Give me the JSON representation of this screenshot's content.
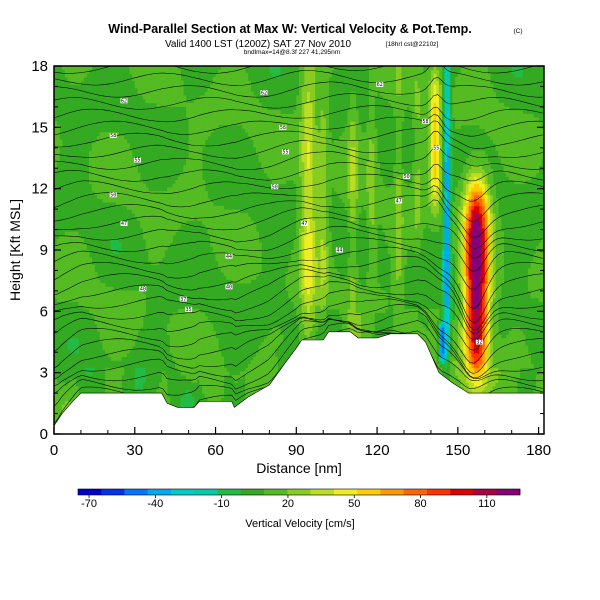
{
  "chart_data": {
    "type": "heatmap",
    "title": "Wind-Parallel Section at Max W: Vertical Velocity & Pot.Temp.",
    "title_mark": "(C)",
    "subtitle": "Valid 1400 LST (1200Z) SAT 27 Nov 2010",
    "subtitle_extra": "[18hrl cst@2210z]",
    "subtitle2": "bndlmax=14@8.3f 227 41,295nm",
    "xlabel": "Distance [nm]",
    "ylabel": "Height [Kft MSL]",
    "xlim": [
      0,
      182
    ],
    "ylim": [
      0,
      18
    ],
    "xticks": [
      "0",
      "30",
      "60",
      "90",
      "120",
      "150",
      "180"
    ],
    "xtick_values": [
      0,
      30,
      60,
      90,
      120,
      150,
      180
    ],
    "yticks": [
      "0",
      "3",
      "6",
      "9",
      "12",
      "15",
      "18"
    ],
    "ytick_values": [
      0,
      3,
      6,
      9,
      12,
      15,
      18
    ],
    "colorbar": {
      "label": "Vertical Velocity [cm/s]",
      "range": [
        -75,
        125
      ],
      "ticks": [
        "-70",
        "-40",
        "-10",
        "20",
        "50",
        "80",
        "110"
      ],
      "tick_values": [
        -70,
        -40,
        -10,
        20,
        50,
        80,
        110
      ],
      "colors": [
        "#0000cc",
        "#0033ee",
        "#0077ff",
        "#00aaee",
        "#00cccc",
        "#00ccaa",
        "#22bb44",
        "#33aa22",
        "#55bb22",
        "#88cc22",
        "#bbdd22",
        "#eeee22",
        "#ffcc00",
        "#ff9900",
        "#ff6600",
        "#ff3300",
        "#dd0000",
        "#aa0044",
        "#880077"
      ]
    },
    "terrain_kft": [
      [
        0,
        0.4
      ],
      [
        3,
        1.0
      ],
      [
        7,
        1.6
      ],
      [
        10,
        2.0
      ],
      [
        40,
        2.0
      ],
      [
        42,
        1.5
      ],
      [
        46,
        1.3
      ],
      [
        52,
        1.3
      ],
      [
        54,
        1.6
      ],
      [
        66,
        1.6
      ],
      [
        67,
        1.3
      ],
      [
        69,
        1.5
      ],
      [
        72,
        1.8
      ],
      [
        80,
        2.4
      ],
      [
        86,
        3.5
      ],
      [
        90,
        4.2
      ],
      [
        92,
        4.6
      ],
      [
        100,
        4.6
      ],
      [
        102,
        5.0
      ],
      [
        110,
        5.0
      ],
      [
        113,
        4.7
      ],
      [
        120,
        4.7
      ],
      [
        125,
        4.9
      ],
      [
        135,
        4.9
      ],
      [
        138,
        4.5
      ],
      [
        141,
        3.6
      ],
      [
        143,
        3.0
      ],
      [
        148,
        2.5
      ],
      [
        154,
        2.0
      ],
      [
        162,
        2.0
      ],
      [
        182,
        2.0
      ]
    ],
    "vertical_velocity_features": [
      {
        "x_nm": 94.5,
        "width_nm": 3.0,
        "z_bottom_kft": 4.5,
        "z_top_kft": 18,
        "peak_cms": 45
      },
      {
        "x_nm": 100,
        "width_nm": 1.8,
        "z_bottom_kft": 5.5,
        "z_top_kft": 17,
        "peak_cms": 30
      },
      {
        "x_nm": 111,
        "width_nm": 1.8,
        "z_bottom_kft": 5.5,
        "z_top_kft": 17,
        "peak_cms": 28
      },
      {
        "x_nm": 118,
        "width_nm": 1.6,
        "z_bottom_kft": 6,
        "z_top_kft": 16.5,
        "peak_cms": 25
      },
      {
        "x_nm": 128,
        "width_nm": 1.6,
        "z_bottom_kft": 6,
        "z_top_kft": 17,
        "peak_cms": 26
      },
      {
        "x_nm": 135,
        "width_nm": 1.5,
        "z_bottom_kft": 9,
        "z_top_kft": 18,
        "peak_cms": 24
      },
      {
        "x_nm": 141.5,
        "width_nm": 2.2,
        "z_bottom_kft": 11,
        "z_top_kft": 18,
        "peak_cms": 55
      },
      {
        "x_nm": 146,
        "width_nm": 1.4,
        "z_bottom_kft": 3,
        "z_top_kft": 18,
        "peak_cms": -40
      },
      {
        "x_nm": 157,
        "width_nm": 4.5,
        "z_bottom_kft": 2.5,
        "z_top_kft": 12.5,
        "peak_cms": 125
      },
      {
        "x_nm": 144,
        "width_nm": 1.2,
        "z_bottom_kft": 3.5,
        "z_top_kft": 5.5,
        "peak_cms": -60
      }
    ],
    "contour_labels": [
      {
        "x_nm": 26,
        "z_kft": 16.3,
        "text": "62"
      },
      {
        "x_nm": 78,
        "z_kft": 16.7,
        "text": "62"
      },
      {
        "x_nm": 121,
        "z_kft": 17.1,
        "text": "62"
      },
      {
        "x_nm": 22,
        "z_kft": 14.6,
        "text": "58"
      },
      {
        "x_nm": 85,
        "z_kft": 15.0,
        "text": "58"
      },
      {
        "x_nm": 138,
        "z_kft": 15.3,
        "text": "58"
      },
      {
        "x_nm": 31,
        "z_kft": 13.4,
        "text": "55"
      },
      {
        "x_nm": 86,
        "z_kft": 13.8,
        "text": "55"
      },
      {
        "x_nm": 142,
        "z_kft": 14.0,
        "text": "55"
      },
      {
        "x_nm": 22,
        "z_kft": 11.7,
        "text": "50"
      },
      {
        "x_nm": 82,
        "z_kft": 12.1,
        "text": "50"
      },
      {
        "x_nm": 131,
        "z_kft": 12.6,
        "text": "50"
      },
      {
        "x_nm": 26,
        "z_kft": 10.3,
        "text": "47"
      },
      {
        "x_nm": 93,
        "z_kft": 10.3,
        "text": "47"
      },
      {
        "x_nm": 128,
        "z_kft": 11.4,
        "text": "47"
      },
      {
        "x_nm": 65,
        "z_kft": 8.7,
        "text": "44"
      },
      {
        "x_nm": 106,
        "z_kft": 9.0,
        "text": "44"
      },
      {
        "x_nm": 33,
        "z_kft": 7.1,
        "text": "40"
      },
      {
        "x_nm": 65,
        "z_kft": 7.2,
        "text": "40"
      },
      {
        "x_nm": 48,
        "z_kft": 6.6,
        "text": "37"
      },
      {
        "x_nm": 50,
        "z_kft": 6.1,
        "text": "35"
      },
      {
        "x_nm": 158,
        "z_kft": 4.5,
        "text": "32"
      }
    ]
  }
}
